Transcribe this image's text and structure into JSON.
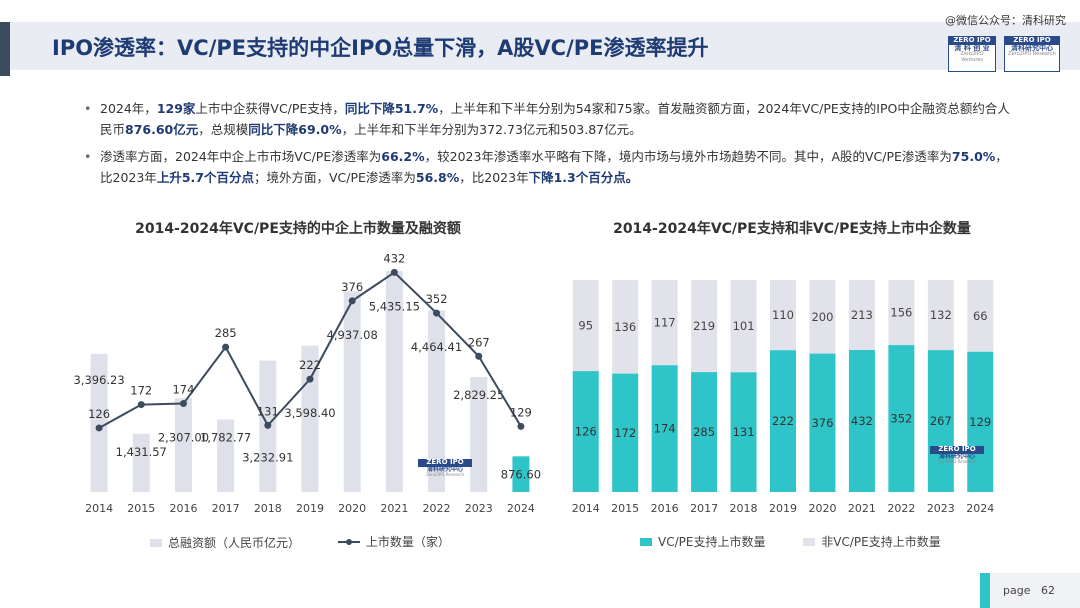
{
  "header": {
    "title": "IPO渗透率：VC/PE支持的中企IPO总量下滑，A股VC/PE渗透率提升",
    "watermark": "@微信公众号：清科研究",
    "logo1_top": "ZERO IPO",
    "logo1_bottom": "清 科 创 业",
    "logo1_sub": "Zero2IPO Ventures",
    "logo2_top": "ZERO IPO",
    "logo2_bottom": "清科研究中心",
    "logo2_sub": "Zero2IPO Research"
  },
  "bullets": [
    {
      "parts": [
        {
          "t": "2024年，",
          "b": false
        },
        {
          "t": "129家",
          "b": true
        },
        {
          "t": "上市中企获得VC/PE支持，",
          "b": false
        },
        {
          "t": "同比下降51.7%",
          "b": true
        },
        {
          "t": "，上半年和下半年分别为54家和75家。首发融资额方面，2024年VC/PE支持的IPO中企融资总额约合人民币",
          "b": false
        },
        {
          "t": "876.60亿元",
          "b": true
        },
        {
          "t": "，总规模",
          "b": false
        },
        {
          "t": "同比下降69.0%",
          "b": true
        },
        {
          "t": "，上半年和下半年分别为372.73亿元和503.87亿元。",
          "b": false
        }
      ]
    },
    {
      "parts": [
        {
          "t": "渗透率方面，2024年中企上市市场VC/PE渗透率为",
          "b": false
        },
        {
          "t": "66.2%",
          "b": true
        },
        {
          "t": "，较2023年渗透率水平略有下降，境内市场与境外市场趋势不同。其中，A股的VC/PE渗透率为",
          "b": false
        },
        {
          "t": "75.0%",
          "b": true
        },
        {
          "t": "，比2023年",
          "b": false
        },
        {
          "t": "上升5.7个百分点",
          "b": true
        },
        {
          "t": "；境外方面，VC/PE渗透率为",
          "b": false
        },
        {
          "t": "56.8%",
          "b": true
        },
        {
          "t": "，比2023年",
          "b": false
        },
        {
          "t": "下降1.3个百分点。",
          "b": true
        }
      ]
    }
  ],
  "chart_data": [
    {
      "type": "bar+line",
      "title": "2014-2024年VC/PE支持的中企上市数量及融资额",
      "categories": [
        "2014",
        "2015",
        "2016",
        "2017",
        "2018",
        "2019",
        "2020",
        "2021",
        "2022",
        "2023",
        "2024"
      ],
      "series": [
        {
          "name": "总融资额（人民币亿元）",
          "type": "bar",
          "color": "#dfe1ea",
          "highlight_last_color": "#2ec4c8",
          "values": [
            3396.23,
            1431.57,
            2307.0,
            1782.77,
            3232.91,
            3598.4,
            4937.08,
            5435.15,
            4464.41,
            2829.25,
            876.6
          ],
          "labels": [
            "3,396.23",
            "1,431.57",
            "2,307.00",
            "1,782.77",
            "3,232.91",
            "3,598.40",
            "4,937.08",
            "5,435.15",
            "4,464.41",
            "2,829.25",
            "876.60"
          ]
        },
        {
          "name": "上市数量（家）",
          "type": "line",
          "color": "#3d4b5e",
          "values": [
            126,
            172,
            174,
            285,
            131,
            222,
            376,
            432,
            352,
            267,
            129
          ]
        }
      ],
      "bar_ylim": [
        0,
        6000
      ],
      "line_ylim": [
        0,
        480
      ],
      "grid": false,
      "legend": "bottom"
    },
    {
      "type": "stacked_bar_100",
      "title": "2014-2024年VC/PE支持和非VC/PE支持上市中企数量",
      "categories": [
        "2014",
        "2015",
        "2016",
        "2017",
        "2018",
        "2019",
        "2020",
        "2021",
        "2022",
        "2023",
        "2024"
      ],
      "series": [
        {
          "name": "VC/PE支持上市数量",
          "color": "#2ec4c8",
          "values": [
            126,
            172,
            174,
            285,
            131,
            222,
            376,
            432,
            352,
            267,
            129
          ]
        },
        {
          "name": "非VC/PE支持上市数量",
          "color": "#e2e3ea",
          "values": [
            95,
            136,
            117,
            219,
            101,
            110,
            200,
            213,
            156,
            132,
            66
          ]
        }
      ],
      "grid": false,
      "legend": "bottom"
    }
  ],
  "footer": {
    "page_label": "page",
    "page_number": "62"
  }
}
